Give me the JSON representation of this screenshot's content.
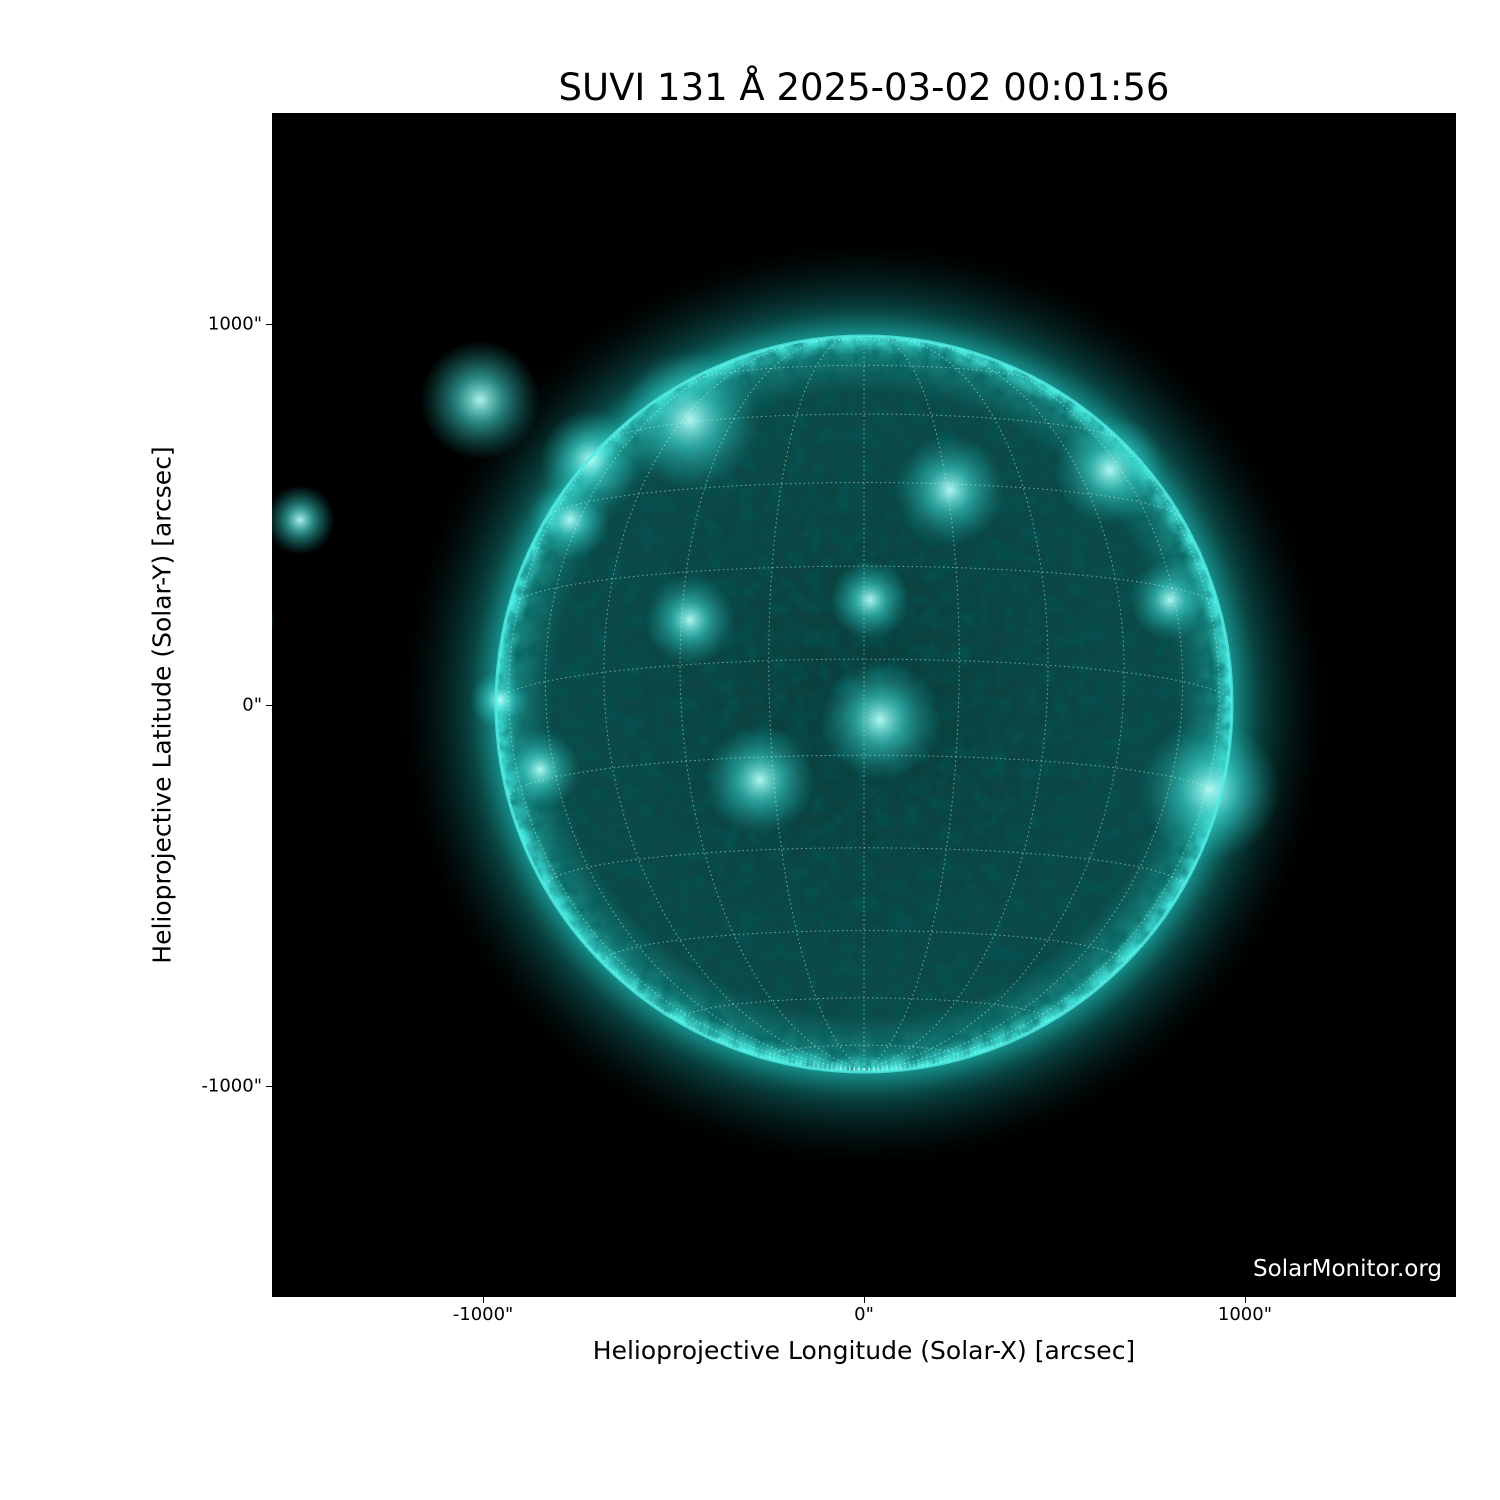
{
  "chart_data": {
    "type": "heatmap",
    "title": "SUVI 131 Å 2025-03-02 00:01:56",
    "xlabel": "Helioprojective Longitude (Solar-X) [arcsec]",
    "ylabel": "Helioprojective Latitude (Solar-Y) [arcsec]",
    "xlim": [
      -1554,
      1554
    ],
    "ylim": [
      -1554,
      1554
    ],
    "xticks": [
      {
        "value": -1000,
        "label": "-1000\""
      },
      {
        "value": 0,
        "label": "0\""
      },
      {
        "value": 1000,
        "label": "1000\""
      }
    ],
    "yticks": [
      {
        "value": 1000,
        "label": "1000\""
      },
      {
        "value": 0,
        "label": "0\""
      },
      {
        "value": -1000,
        "label": "-1000\""
      }
    ],
    "colormap": "teal (SUVI 131)",
    "colors": {
      "background": "#000000",
      "disk": "#0b4a48",
      "limb": "#3fe0d8",
      "active": "#9ffcf4"
    },
    "solar_radius_arcsec": 965,
    "grid": {
      "type": "heliographic",
      "spacing_deg": 15,
      "style": "dotted"
    },
    "watermark": "SolarMonitor.org"
  }
}
